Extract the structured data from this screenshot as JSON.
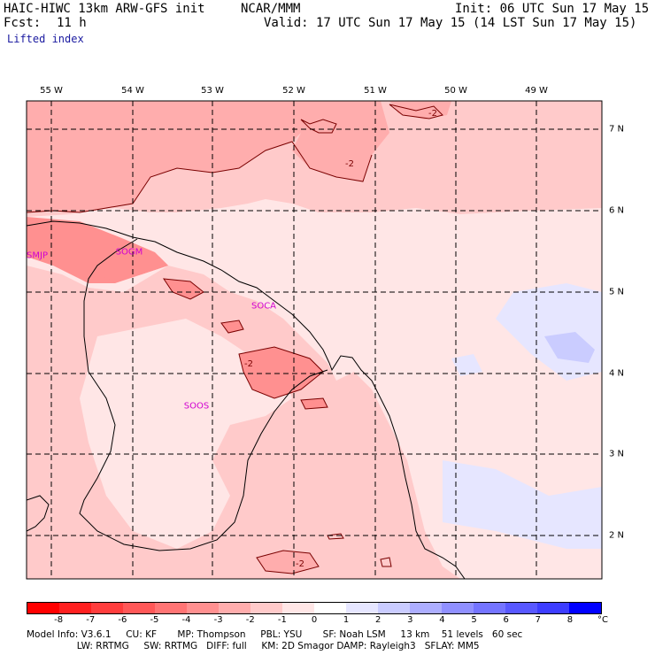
{
  "header": {
    "model": "HAIC-HIWC 13km ARW-GFS init",
    "org": "NCAR/MMM",
    "init": "Init: 06 UTC Sun 17 May 15",
    "fcst_label": "Fcst:",
    "fcst_value": "11 h",
    "valid": "Valid: 17 UTC Sun 17 May 15 (14 LST Sun 17 May 15)",
    "field": "Lifted index"
  },
  "map": {
    "longitude_labels": [
      "55 W",
      "54 W",
      "53 W",
      "52 W",
      "51 W",
      "50 W",
      "49 W"
    ],
    "latitude_labels": [
      "7 N",
      "6 N",
      "5 N",
      "4 N",
      "3 N",
      "2 N"
    ],
    "stations": [
      "SMJP",
      "SOGM",
      "SOCA",
      "SOOS"
    ],
    "contour_labels": [
      "-2",
      "-2",
      "-2",
      "-2"
    ]
  },
  "colorbar": {
    "ticks": [
      "-8",
      "-7",
      "-6",
      "-5",
      "-4",
      "-3",
      "-2",
      "-1",
      "0",
      "1",
      "2",
      "3",
      "4",
      "5",
      "6",
      "7",
      "8"
    ],
    "unit": "°C",
    "colors": [
      "#ff0000",
      "#ff2020",
      "#ff3d3d",
      "#ff5858",
      "#ff7474",
      "#ff9090",
      "#ffadad",
      "#ffcaca",
      "#ffe6e6",
      "#ffffff",
      "#e6e6ff",
      "#caccff",
      "#adaeff",
      "#9090ff",
      "#7474ff",
      "#5858ff",
      "#3d3dff",
      "#0000ff"
    ]
  },
  "footer": {
    "line1": "Model Info: V3.6.1     CU: KF       MP: Thompson     PBL: YSU       SF: Noah LSM     13 km    51 levels   60 sec",
    "line2": "                 LW: RRTMG     SW: RRTMG   DIFF: full     KM: 2D Smagor DAMP: Rayleigh3   SFLAY: MM5"
  }
}
